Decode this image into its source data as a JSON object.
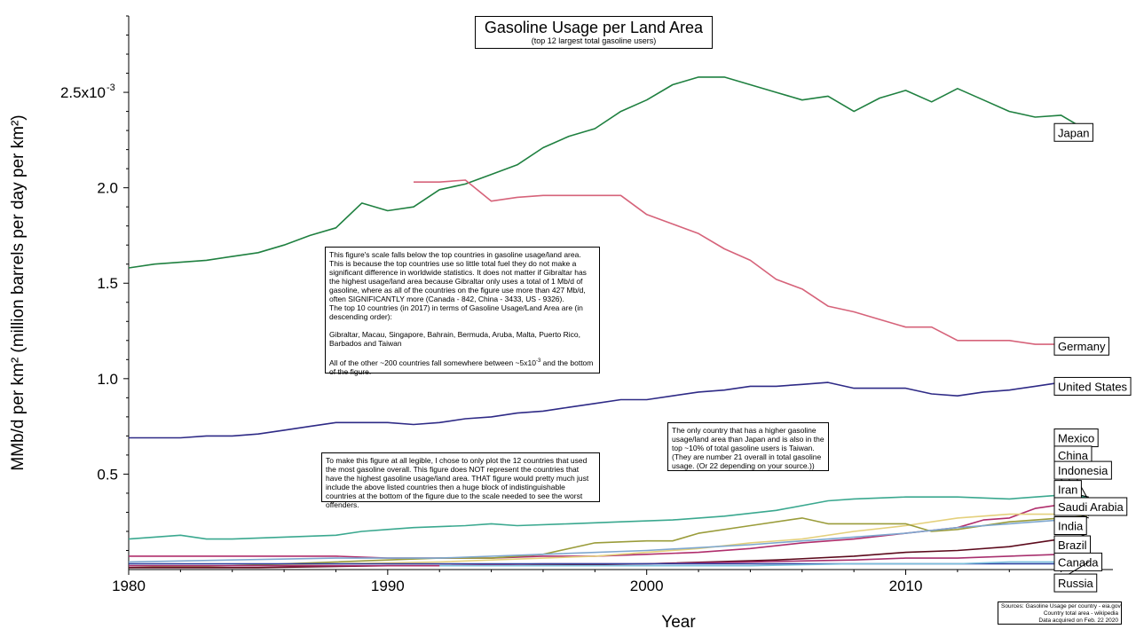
{
  "chart_data": {
    "type": "line",
    "title": "Gasoline Usage per Land Area",
    "subtitle": "(top 12 largest total gasoline users)",
    "xlabel": "Year",
    "ylabel": "MMb/d per km² (million barrels per day per km²)",
    "xlim": [
      1980,
      2018
    ],
    "ylim": [
      0,
      0.0029
    ],
    "x_ticks": [
      1980,
      1990,
      2000,
      2010
    ],
    "y_ticks": [
      {
        "value": 0.0005,
        "label": "0.5"
      },
      {
        "value": 0.001,
        "label": "1.0"
      },
      {
        "value": 0.0015,
        "label": "1.5"
      },
      {
        "value": 0.002,
        "label": "2.0"
      },
      {
        "value": 0.0025,
        "label": "2.5x10"
      }
    ],
    "y_tick_exponent": "-3",
    "grid": false,
    "legend_placement": "labels at right end of lines",
    "series": [
      {
        "name": "Japan",
        "color": "#1f8040",
        "label_y": 0.00229,
        "points": [
          [
            1980,
            0.00158
          ],
          [
            1981,
            0.0016
          ],
          [
            1982,
            0.00161
          ],
          [
            1983,
            0.00162
          ],
          [
            1984,
            0.00164
          ],
          [
            1985,
            0.00166
          ],
          [
            1986,
            0.0017
          ],
          [
            1987,
            0.00175
          ],
          [
            1988,
            0.00179
          ],
          [
            1989,
            0.00192
          ],
          [
            1990,
            0.00188
          ],
          [
            1991,
            0.0019
          ],
          [
            1992,
            0.00199
          ],
          [
            1993,
            0.00202
          ],
          [
            1994,
            0.00207
          ],
          [
            1995,
            0.00212
          ],
          [
            1996,
            0.00221
          ],
          [
            1997,
            0.00227
          ],
          [
            1998,
            0.00231
          ],
          [
            1999,
            0.0024
          ],
          [
            2000,
            0.00246
          ],
          [
            2001,
            0.00254
          ],
          [
            2002,
            0.00258
          ],
          [
            2003,
            0.00258
          ],
          [
            2004,
            0.00254
          ],
          [
            2005,
            0.0025
          ],
          [
            2006,
            0.00246
          ],
          [
            2007,
            0.00248
          ],
          [
            2008,
            0.0024
          ],
          [
            2009,
            0.00247
          ],
          [
            2010,
            0.00251
          ],
          [
            2011,
            0.00245
          ],
          [
            2012,
            0.00252
          ],
          [
            2013,
            0.00246
          ],
          [
            2014,
            0.0024
          ],
          [
            2015,
            0.00237
          ],
          [
            2016,
            0.00238
          ],
          [
            2017,
            0.0023
          ]
        ]
      },
      {
        "name": "Germany",
        "color": "#d6637a",
        "label_y": 0.00117,
        "points": [
          [
            1991,
            0.00203
          ],
          [
            1992,
            0.00203
          ],
          [
            1993,
            0.00204
          ],
          [
            1994,
            0.00193
          ],
          [
            1995,
            0.00195
          ],
          [
            1996,
            0.00196
          ],
          [
            1997,
            0.00196
          ],
          [
            1998,
            0.00196
          ],
          [
            1999,
            0.00196
          ],
          [
            2000,
            0.00186
          ],
          [
            2001,
            0.00181
          ],
          [
            2002,
            0.00176
          ],
          [
            2003,
            0.00168
          ],
          [
            2004,
            0.00162
          ],
          [
            2005,
            0.00152
          ],
          [
            2006,
            0.00147
          ],
          [
            2007,
            0.00138
          ],
          [
            2008,
            0.00135
          ],
          [
            2009,
            0.00131
          ],
          [
            2010,
            0.00127
          ],
          [
            2011,
            0.00127
          ],
          [
            2012,
            0.0012
          ],
          [
            2013,
            0.0012
          ],
          [
            2014,
            0.0012
          ],
          [
            2015,
            0.00118
          ],
          [
            2016,
            0.00118
          ],
          [
            2017,
            0.0012
          ]
        ]
      },
      {
        "name": "United States",
        "color": "#2e2a86",
        "label_y": 0.00096,
        "points": [
          [
            1980,
            0.00069
          ],
          [
            1981,
            0.00069
          ],
          [
            1982,
            0.00069
          ],
          [
            1983,
            0.0007
          ],
          [
            1984,
            0.0007
          ],
          [
            1985,
            0.00071
          ],
          [
            1986,
            0.00073
          ],
          [
            1987,
            0.00075
          ],
          [
            1988,
            0.00077
          ],
          [
            1989,
            0.00077
          ],
          [
            1990,
            0.00077
          ],
          [
            1991,
            0.00076
          ],
          [
            1992,
            0.00077
          ],
          [
            1993,
            0.00079
          ],
          [
            1994,
            0.0008
          ],
          [
            1995,
            0.00082
          ],
          [
            1996,
            0.00083
          ],
          [
            1997,
            0.00085
          ],
          [
            1998,
            0.00087
          ],
          [
            1999,
            0.00089
          ],
          [
            2000,
            0.00089
          ],
          [
            2001,
            0.00091
          ],
          [
            2002,
            0.00093
          ],
          [
            2003,
            0.00094
          ],
          [
            2004,
            0.00096
          ],
          [
            2005,
            0.00096
          ],
          [
            2006,
            0.00097
          ],
          [
            2007,
            0.00098
          ],
          [
            2008,
            0.00095
          ],
          [
            2009,
            0.00095
          ],
          [
            2010,
            0.00095
          ],
          [
            2011,
            0.00092
          ],
          [
            2012,
            0.00091
          ],
          [
            2013,
            0.00093
          ],
          [
            2014,
            0.00094
          ],
          [
            2015,
            0.00096
          ],
          [
            2016,
            0.00098
          ],
          [
            2017,
            0.00098
          ]
        ]
      },
      {
        "name": "Mexico",
        "color": "#b02e6c",
        "label_y": 0.00069,
        "points": [
          [
            1980,
            7e-05
          ],
          [
            1982,
            7e-05
          ],
          [
            1984,
            7e-05
          ],
          [
            1986,
            7e-05
          ],
          [
            1988,
            7e-05
          ],
          [
            1990,
            6e-05
          ],
          [
            1992,
            6e-05
          ],
          [
            1994,
            6e-05
          ],
          [
            1996,
            7e-05
          ],
          [
            1998,
            7e-05
          ],
          [
            2000,
            8e-05
          ],
          [
            2002,
            9e-05
          ],
          [
            2004,
            0.00011
          ],
          [
            2006,
            0.00014
          ],
          [
            2008,
            0.00016
          ],
          [
            2010,
            0.00019
          ],
          [
            2012,
            0.00022
          ],
          [
            2013,
            0.00026
          ],
          [
            2014,
            0.00027
          ],
          [
            2015,
            0.00032
          ],
          [
            2016,
            0.00034
          ],
          [
            2017,
            0.00036
          ]
        ]
      },
      {
        "name": "China",
        "color": "#e4d07c",
        "label_y": 0.0006,
        "points": [
          [
            1980,
            2e-05
          ],
          [
            1984,
            2e-05
          ],
          [
            1988,
            3e-05
          ],
          [
            1992,
            4e-05
          ],
          [
            1996,
            6e-05
          ],
          [
            1998,
            7e-05
          ],
          [
            2000,
            9e-05
          ],
          [
            2002,
            0.00011
          ],
          [
            2004,
            0.00014
          ],
          [
            2006,
            0.00016
          ],
          [
            2008,
            0.0002
          ],
          [
            2010,
            0.00023
          ],
          [
            2012,
            0.00027
          ],
          [
            2014,
            0.00029
          ],
          [
            2016,
            0.00029
          ],
          [
            2017,
            0.0003
          ]
        ]
      },
      {
        "name": "Indonesia",
        "color": "#9a9c3a",
        "label_y": 0.00052,
        "points": [
          [
            1980,
            1e-05
          ],
          [
            1984,
            2e-05
          ],
          [
            1988,
            4e-05
          ],
          [
            1990,
            5e-05
          ],
          [
            1992,
            6e-05
          ],
          [
            1994,
            6e-05
          ],
          [
            1996,
            8e-05
          ],
          [
            1998,
            0.00014
          ],
          [
            2000,
            0.00015
          ],
          [
            2001,
            0.00015
          ],
          [
            2002,
            0.00019
          ],
          [
            2004,
            0.00023
          ],
          [
            2006,
            0.00027
          ],
          [
            2007,
            0.00024
          ],
          [
            2009,
            0.00024
          ],
          [
            2010,
            0.00024
          ],
          [
            2011,
            0.0002
          ],
          [
            2012,
            0.00021
          ],
          [
            2014,
            0.00025
          ],
          [
            2016,
            0.00027
          ],
          [
            2017,
            0.00028
          ]
        ]
      },
      {
        "name": "Iran",
        "color": "#3aa88f",
        "label_y": 0.00042,
        "points": [
          [
            1980,
            0.00016
          ],
          [
            1981,
            0.00017
          ],
          [
            1982,
            0.00018
          ],
          [
            1983,
            0.00016
          ],
          [
            1984,
            0.00016
          ],
          [
            1986,
            0.00017
          ],
          [
            1988,
            0.00018
          ],
          [
            1989,
            0.0002
          ],
          [
            1990,
            0.00021
          ],
          [
            1991,
            0.00022
          ],
          [
            1993,
            0.00023
          ],
          [
            1994,
            0.00024
          ],
          [
            1995,
            0.00023
          ],
          [
            1997,
            0.00024
          ],
          [
            1999,
            0.00025
          ],
          [
            2001,
            0.00026
          ],
          [
            2003,
            0.00028
          ],
          [
            2005,
            0.00031
          ],
          [
            2007,
            0.00036
          ],
          [
            2008,
            0.00037
          ],
          [
            2010,
            0.00038
          ],
          [
            2012,
            0.00038
          ],
          [
            2014,
            0.00037
          ],
          [
            2016,
            0.00039
          ],
          [
            2017,
            0.00038
          ]
        ]
      },
      {
        "name": "Saudi Arabia",
        "color": "#7ea7cf",
        "label_y": 0.00033,
        "points": [
          [
            1980,
            4e-05
          ],
          [
            1984,
            5e-05
          ],
          [
            1988,
            6e-05
          ],
          [
            1992,
            6e-05
          ],
          [
            1996,
            8e-05
          ],
          [
            2000,
            0.0001
          ],
          [
            2004,
            0.00013
          ],
          [
            2008,
            0.00017
          ],
          [
            2010,
            0.00019
          ],
          [
            2012,
            0.00022
          ],
          [
            2014,
            0.00024
          ],
          [
            2016,
            0.00026
          ],
          [
            2017,
            0.00027
          ]
        ]
      },
      {
        "name": "India",
        "color": "#5c0a1c",
        "label_y": 0.00023,
        "points": [
          [
            1980,
            1e-05
          ],
          [
            1985,
            1e-05
          ],
          [
            1990,
            2e-05
          ],
          [
            1995,
            2e-05
          ],
          [
            2000,
            3e-05
          ],
          [
            2005,
            5e-05
          ],
          [
            2008,
            7e-05
          ],
          [
            2010,
            9e-05
          ],
          [
            2012,
            0.0001
          ],
          [
            2014,
            0.00012
          ],
          [
            2016,
            0.00016
          ],
          [
            2017,
            0.00017
          ]
        ]
      },
      {
        "name": "Brazil",
        "color": "#a8306e",
        "label_y": 0.00013,
        "points": [
          [
            1980,
            2e-05
          ],
          [
            1984,
            2e-05
          ],
          [
            1988,
            2e-05
          ],
          [
            1992,
            2e-05
          ],
          [
            1996,
            3e-05
          ],
          [
            2000,
            3e-05
          ],
          [
            2004,
            4e-05
          ],
          [
            2008,
            5e-05
          ],
          [
            2010,
            6e-05
          ],
          [
            2012,
            6e-05
          ],
          [
            2014,
            7e-05
          ],
          [
            2016,
            8e-05
          ],
          [
            2017,
            8e-05
          ]
        ]
      },
      {
        "name": "Canada",
        "color": "#2b3fa0",
        "label_y": 4e-05,
        "points": [
          [
            1980,
            3e-05
          ],
          [
            1990,
            3e-05
          ],
          [
            2000,
            3e-05
          ],
          [
            2010,
            3e-05
          ],
          [
            2017,
            3e-05
          ]
        ]
      },
      {
        "name": "Russia",
        "color": "#7cc0dc",
        "label_y": -7e-05,
        "points": [
          [
            1992,
            2e-05
          ],
          [
            1996,
            2e-05
          ],
          [
            2000,
            2e-05
          ],
          [
            2004,
            2e-05
          ],
          [
            2008,
            3e-05
          ],
          [
            2012,
            3e-05
          ],
          [
            2014,
            4e-05
          ],
          [
            2017,
            4e-05
          ]
        ]
      }
    ]
  },
  "notes": {
    "note1": "This figure's scale falls below the top countries in gasoline usage/land area.\nThis is because the top countries use so little total fuel they do not make a significant difference in worldwide statistics. It does not matter if Gibraltar has the highest usage/land area because Gibraltar only uses a total of 1 Mb/d of gasoline, where as all of the countries on the figure use more than 427 Mb/d, often SIGNIFICANTLY more (Canada - 842, China - 3433, US - 9326).\nThe top 10 countries (in 2017) in terms of Gasoline Usage/Land Area are (in descending order):\n\nGibraltar, Macau, Singapore, Bahrain, Bermuda, Aruba, Malta, Puerto Rico, Barbados and Taiwan",
    "note1_tail_pre": "All of the other ~200 countries fall somewhere between ~5x10",
    "note1_tail_exp": "-3",
    "note1_tail_post": " and the bottom of the figure.",
    "note2": "To make this figure at all legible, I chose to only plot the 12 countries that used the most gasoline overall. This figure does NOT represent the countries that have the highest gasoline usage/land area. THAT figure would pretty much just include the above listed countries then a huge block of indistinguishable countries at the bottom of the figure due to the scale needed to see the worst offenders.",
    "note3": "The only country that has a higher gasoline usage/land area than Japan and is also in the top ~10% of total gasoline users is Taiwan. (They are number 21 overall in total gasoline usage. (Or 22 depending on your source.))"
  },
  "sources": {
    "line1": "Sources: Gasoline Usage per country - eia.gov",
    "line2": "Country total area - wikipedia",
    "line3": "Data acquired on Feb. 22 2020"
  }
}
